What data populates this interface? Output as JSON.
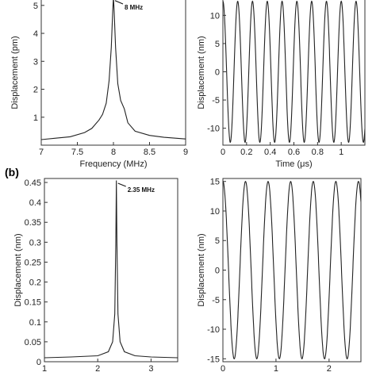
{
  "panel_label_b": "(b)",
  "chart_data": [
    {
      "type": "line",
      "xlabel": "Frequency (MHz)",
      "ylabel": "Displacement (pm)",
      "xlim": [
        7,
        9
      ],
      "ylim": [
        0,
        5.25
      ],
      "xticks": [
        7,
        7.5,
        8,
        8.5,
        9
      ],
      "yticks": [
        1,
        2,
        3,
        4,
        5
      ],
      "annotation": {
        "text": "8 MHz",
        "x": 8.0,
        "y": 5.2
      },
      "x": [
        7.0,
        7.2,
        7.4,
        7.6,
        7.7,
        7.8,
        7.85,
        7.9,
        7.94,
        7.97,
        7.99,
        8.0,
        8.01,
        8.03,
        8.06,
        8.1,
        8.15,
        8.2,
        8.3,
        8.5,
        8.7,
        9.0
      ],
      "y": [
        0.2,
        0.25,
        0.3,
        0.45,
        0.6,
        0.9,
        1.1,
        1.5,
        2.3,
        3.5,
        4.8,
        5.3,
        4.8,
        3.5,
        2.2,
        1.6,
        1.3,
        0.8,
        0.5,
        0.35,
        0.28,
        0.22
      ]
    },
    {
      "type": "line",
      "xlabel": "Time (μs)",
      "ylabel": "Displacement (nm)",
      "xlim": [
        0,
        1.2
      ],
      "ylim": [
        -13,
        13
      ],
      "xticks": [
        0,
        0.2,
        0.4,
        0.6,
        0.8,
        1
      ],
      "yticks": [
        -10,
        -5,
        0,
        5,
        10
      ],
      "signal": {
        "amplitude": 12.5,
        "frequency_mhz": 8
      }
    },
    {
      "type": "line",
      "xlabel": "",
      "ylabel": "Displacement (nm)",
      "xlim": [
        1,
        3.5
      ],
      "ylim": [
        0,
        0.46
      ],
      "xticks": [
        1,
        2,
        3
      ],
      "yticks": [
        0,
        0.05,
        0.1,
        0.15,
        0.2,
        0.25,
        0.3,
        0.35,
        0.4,
        0.45
      ],
      "annotation": {
        "text": "2.35 MHz",
        "x": 2.35,
        "y": 0.45
      },
      "x": [
        1.0,
        1.5,
        2.0,
        2.2,
        2.28,
        2.32,
        2.34,
        2.35,
        2.36,
        2.38,
        2.42,
        2.5,
        2.7,
        3.0,
        3.5
      ],
      "y": [
        0.01,
        0.012,
        0.015,
        0.025,
        0.05,
        0.12,
        0.3,
        0.455,
        0.3,
        0.12,
        0.05,
        0.025,
        0.015,
        0.012,
        0.01
      ]
    },
    {
      "type": "line",
      "xlabel": "",
      "ylabel": "Displacement (nm)",
      "xlim": [
        0,
        2.6
      ],
      "ylim": [
        -15.5,
        15.5
      ],
      "xticks": [
        0,
        1,
        2
      ],
      "yticks": [
        -15,
        -10,
        -5,
        0,
        5,
        10,
        15
      ],
      "signal": {
        "amplitude": 15,
        "frequency_mhz": 2.35
      }
    }
  ]
}
